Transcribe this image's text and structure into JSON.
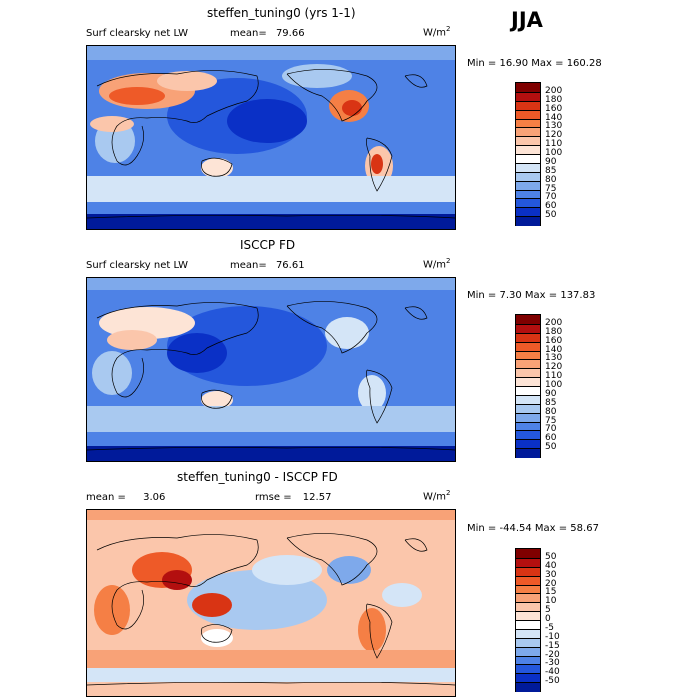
{
  "season": "JJA",
  "panels": [
    {
      "title": "steffen_tuning0 (yrs 1-1)",
      "var_label": "Surf clearsky net LW",
      "mean_label": "mean=",
      "mean_value": "79.66",
      "units": "W/m",
      "units_exp": "2",
      "minmax": "Min =   16.90 Max = 160.28",
      "colorbar": {
        "ticks": [
          "200",
          "180",
          "160",
          "140",
          "130",
          "120",
          "110",
          "100",
          "90",
          "85",
          "80",
          "75",
          "70",
          "60",
          "50"
        ],
        "colors": [
          "#7f0000",
          "#b30f0f",
          "#d93414",
          "#ee5a28",
          "#f57f45",
          "#f8a277",
          "#fbc6ab",
          "#fde4d6",
          "#ffffff",
          "#d4e5f7",
          "#a9c9f0",
          "#7ea9eb",
          "#4e82e6",
          "#2457dc",
          "#0a30c6",
          "#001a9a"
        ]
      }
    },
    {
      "title": "ISCCP FD",
      "var_label": "Surf clearsky net LW",
      "mean_label": "mean=",
      "mean_value": "76.61",
      "units": "W/m",
      "units_exp": "2",
      "minmax": "Min =    7.30 Max = 137.83",
      "colorbar": {
        "ticks": [
          "200",
          "180",
          "160",
          "140",
          "130",
          "120",
          "110",
          "100",
          "90",
          "85",
          "80",
          "75",
          "70",
          "60",
          "50"
        ],
        "colors": [
          "#7f0000",
          "#b30f0f",
          "#d93414",
          "#ee5a28",
          "#f57f45",
          "#f8a277",
          "#fbc6ab",
          "#fde4d6",
          "#ffffff",
          "#d4e5f7",
          "#a9c9f0",
          "#7ea9eb",
          "#4e82e6",
          "#2457dc",
          "#0a30c6",
          "#001a9a"
        ]
      }
    },
    {
      "title": "steffen_tuning0 - ISCCP FD",
      "mean_label": "mean =",
      "mean_value": "3.06",
      "rmse_label": "rmse =",
      "rmse_value": "12.57",
      "units": "W/m",
      "units_exp": "2",
      "minmax": "Min = -44.54 Max =  58.67",
      "colorbar": {
        "ticks": [
          "50",
          "40",
          "30",
          "20",
          "15",
          "10",
          "5",
          "0",
          "-5",
          "-10",
          "-15",
          "-20",
          "-30",
          "-40",
          "-50"
        ],
        "colors": [
          "#7f0000",
          "#b30f0f",
          "#d93414",
          "#ee5a28",
          "#f57f45",
          "#f8a277",
          "#fbc6ab",
          "#fde4d6",
          "#ffffff",
          "#d4e5f7",
          "#a9c9f0",
          "#7ea9eb",
          "#4e82e6",
          "#2457dc",
          "#0a30c6",
          "#001a9a"
        ]
      }
    }
  ],
  "chart_data": [
    {
      "type": "heatmap",
      "title": "steffen_tuning0 (yrs 1-1)",
      "subtitle": "Surf clearsky net LW",
      "units": "W/m2",
      "mean": 79.66,
      "min": 16.9,
      "max": 160.28,
      "colorbar_levels": [
        50,
        60,
        70,
        75,
        80,
        85,
        90,
        100,
        110,
        120,
        130,
        140,
        160,
        180,
        200
      ]
    },
    {
      "type": "heatmap",
      "title": "ISCCP FD",
      "subtitle": "Surf clearsky net LW",
      "units": "W/m2",
      "mean": 76.61,
      "min": 7.3,
      "max": 137.83,
      "colorbar_levels": [
        50,
        60,
        70,
        75,
        80,
        85,
        90,
        100,
        110,
        120,
        130,
        140,
        160,
        180,
        200
      ]
    },
    {
      "type": "heatmap",
      "title": "steffen_tuning0 - ISCCP FD",
      "units": "W/m2",
      "mean": 3.06,
      "rmse": 12.57,
      "min": -44.54,
      "max": 58.67,
      "colorbar_levels": [
        -50,
        -40,
        -30,
        -20,
        -15,
        -10,
        -5,
        0,
        5,
        10,
        15,
        20,
        30,
        40,
        50
      ]
    }
  ]
}
